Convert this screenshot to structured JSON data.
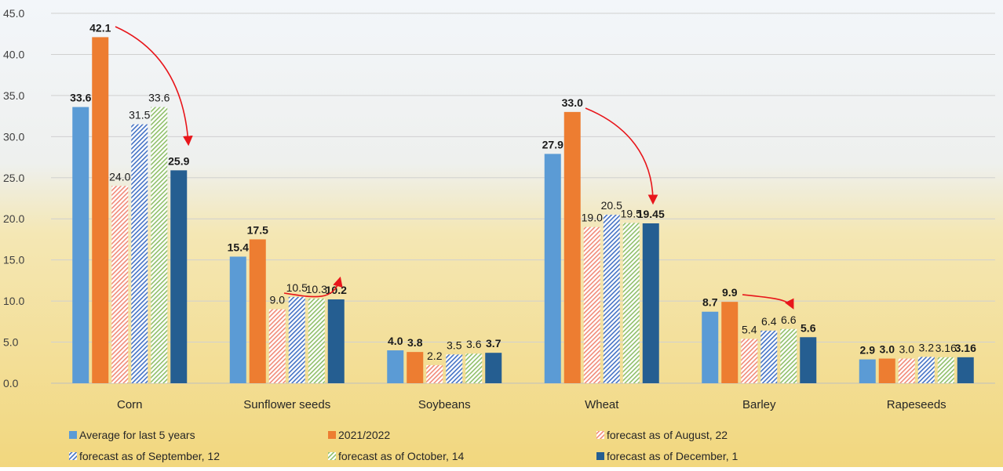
{
  "chart_data": {
    "type": "bar",
    "categories": [
      "Corn",
      "Sunflower seeds",
      "Soybeans",
      "Wheat",
      "Barley",
      "Rapeseeds"
    ],
    "series": [
      {
        "name": "Average for last 5 years",
        "color": "#5b9bd5",
        "hatch": false,
        "values": [
          33.6,
          15.4,
          4.0,
          27.9,
          8.7,
          2.9
        ],
        "value_labels": [
          "33.6",
          "15.4",
          "4.0",
          "27.9",
          "8.7",
          "2.9"
        ]
      },
      {
        "name": "2021/2022",
        "color": "#ed7d31",
        "hatch": false,
        "values": [
          42.1,
          17.5,
          3.8,
          33.0,
          9.9,
          3.0
        ],
        "value_labels": [
          "42.1",
          "17.5",
          "3.8",
          "33.0",
          "9.9",
          "3.0"
        ]
      },
      {
        "name": "forecast as of August, 22",
        "color": "#f08a78",
        "hatch": true,
        "values": [
          24.0,
          9.0,
          2.2,
          19.0,
          5.4,
          3.0
        ],
        "value_labels": [
          "24.0",
          "9.0",
          "2.2",
          "19.0",
          "5.4",
          "3.0"
        ]
      },
      {
        "name": "forecast as of September, 12",
        "color": "#4472c4",
        "hatch": true,
        "values": [
          31.5,
          10.5,
          3.5,
          20.5,
          6.4,
          3.2
        ],
        "value_labels": [
          "31.5",
          "10.5",
          "3.5",
          "20.5",
          "6.4",
          "3.2"
        ]
      },
      {
        "name": "forecast as of October, 14",
        "color": "#8fbf6a",
        "hatch": true,
        "values": [
          33.6,
          10.3,
          3.6,
          19.5,
          6.6,
          3.16
        ],
        "value_labels": [
          "33.6",
          "10.3",
          "3.6",
          "19.5",
          "6.6",
          "3.16"
        ]
      },
      {
        "name": "forecast as of December, 1",
        "color": "#255e91",
        "hatch": false,
        "values": [
          25.9,
          10.2,
          3.7,
          19.45,
          5.6,
          3.16
        ],
        "value_labels": [
          "25.9",
          "10.2",
          "3.7",
          "19.45",
          "5.6",
          "3.16"
        ]
      }
    ],
    "ylim": [
      0,
      45
    ],
    "yticks": [
      {
        "value": 0,
        "label": "0.0"
      },
      {
        "value": 5,
        "label": "5.0"
      },
      {
        "value": 10,
        "label": "10.0"
      },
      {
        "value": 15,
        "label": "15.0"
      },
      {
        "value": 20,
        "label": "20.0"
      },
      {
        "value": 25,
        "label": "25.0"
      },
      {
        "value": 30,
        "label": "30.0"
      },
      {
        "value": 35,
        "label": "35.0"
      },
      {
        "value": 40,
        "label": "40.0"
      },
      {
        "value": 45,
        "label": "45.0"
      }
    ],
    "grid": true
  }
}
